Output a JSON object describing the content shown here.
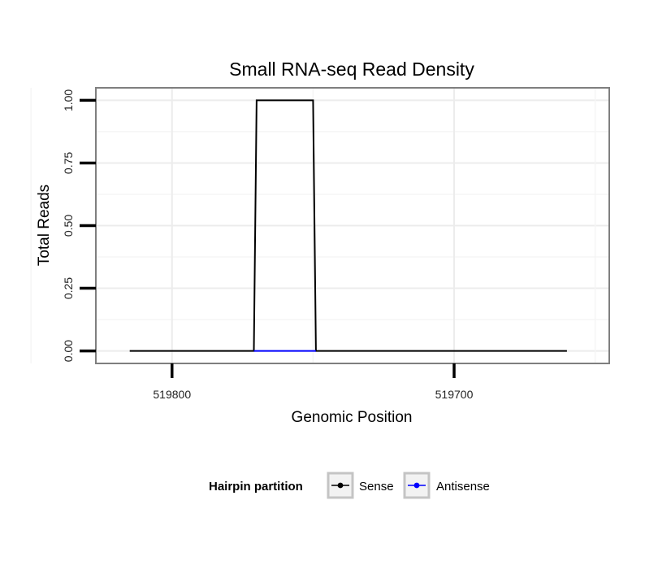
{
  "chart_data": {
    "type": "line",
    "title": "Small RNA-seq Read Density",
    "xlabel": "Genomic Position",
    "ylabel": "Total Reads",
    "x_reversed": true,
    "xlim": [
      519827,
      519645
    ],
    "ylim": [
      -0.05,
      1.05
    ],
    "x_ticks": [
      519800,
      519700
    ],
    "x_tick_labels": [
      "519800",
      "519700"
    ],
    "y_ticks": [
      0,
      0.25,
      0.5,
      0.75,
      1.0
    ],
    "y_tick_labels": [
      "0.00",
      "0.25",
      "0.50",
      "0.75",
      "1.00"
    ],
    "grid": true,
    "legend": {
      "title": "Hairpin partition",
      "placement": "bottom",
      "entries": [
        "Sense",
        "Antisense"
      ]
    },
    "series": [
      {
        "name": "Sense",
        "color": "#000000",
        "x": [
          519815,
          519771,
          519770,
          519750,
          519749,
          519660
        ],
        "y": [
          0,
          0,
          1,
          1,
          0,
          0
        ]
      },
      {
        "name": "Antisense",
        "color": "#0000ff",
        "x": [
          519771,
          519749
        ],
        "y": [
          0,
          0
        ]
      }
    ]
  }
}
